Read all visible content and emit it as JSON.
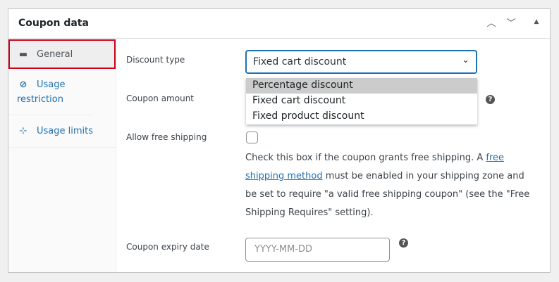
{
  "header": {
    "title": "Coupon data",
    "move_up": "^",
    "move_down": "v",
    "toggle": "▲"
  },
  "sidebar": {
    "items": [
      {
        "label": "General",
        "icon": "ticket-icon"
      },
      {
        "label": "Usage restriction",
        "icon": "block-icon"
      },
      {
        "label": "Usage limits",
        "icon": "limits-icon"
      }
    ]
  },
  "fields": {
    "discount_type": {
      "label": "Discount type",
      "value": "Fixed cart discount",
      "options": [
        "Percentage discount",
        "Fixed cart discount",
        "Fixed product discount"
      ],
      "highlighted": "Percentage discount"
    },
    "coupon_amount": {
      "label": "Coupon amount"
    },
    "free_shipping": {
      "label": "Allow free shipping",
      "checked": false,
      "desc_before": "Check this box if the coupon grants free shipping. A ",
      "desc_link": "free shipping method",
      "desc_after": " must be enabled in your shipping zone and be set to require \"a valid free shipping coupon\" (see the \"Free Shipping Requires\" setting)."
    },
    "expiry": {
      "label": "Coupon expiry date",
      "placeholder": "YYYY-MM-DD"
    }
  },
  "colors": {
    "accent": "#2271b1",
    "highlight_border": "#d0021b"
  }
}
